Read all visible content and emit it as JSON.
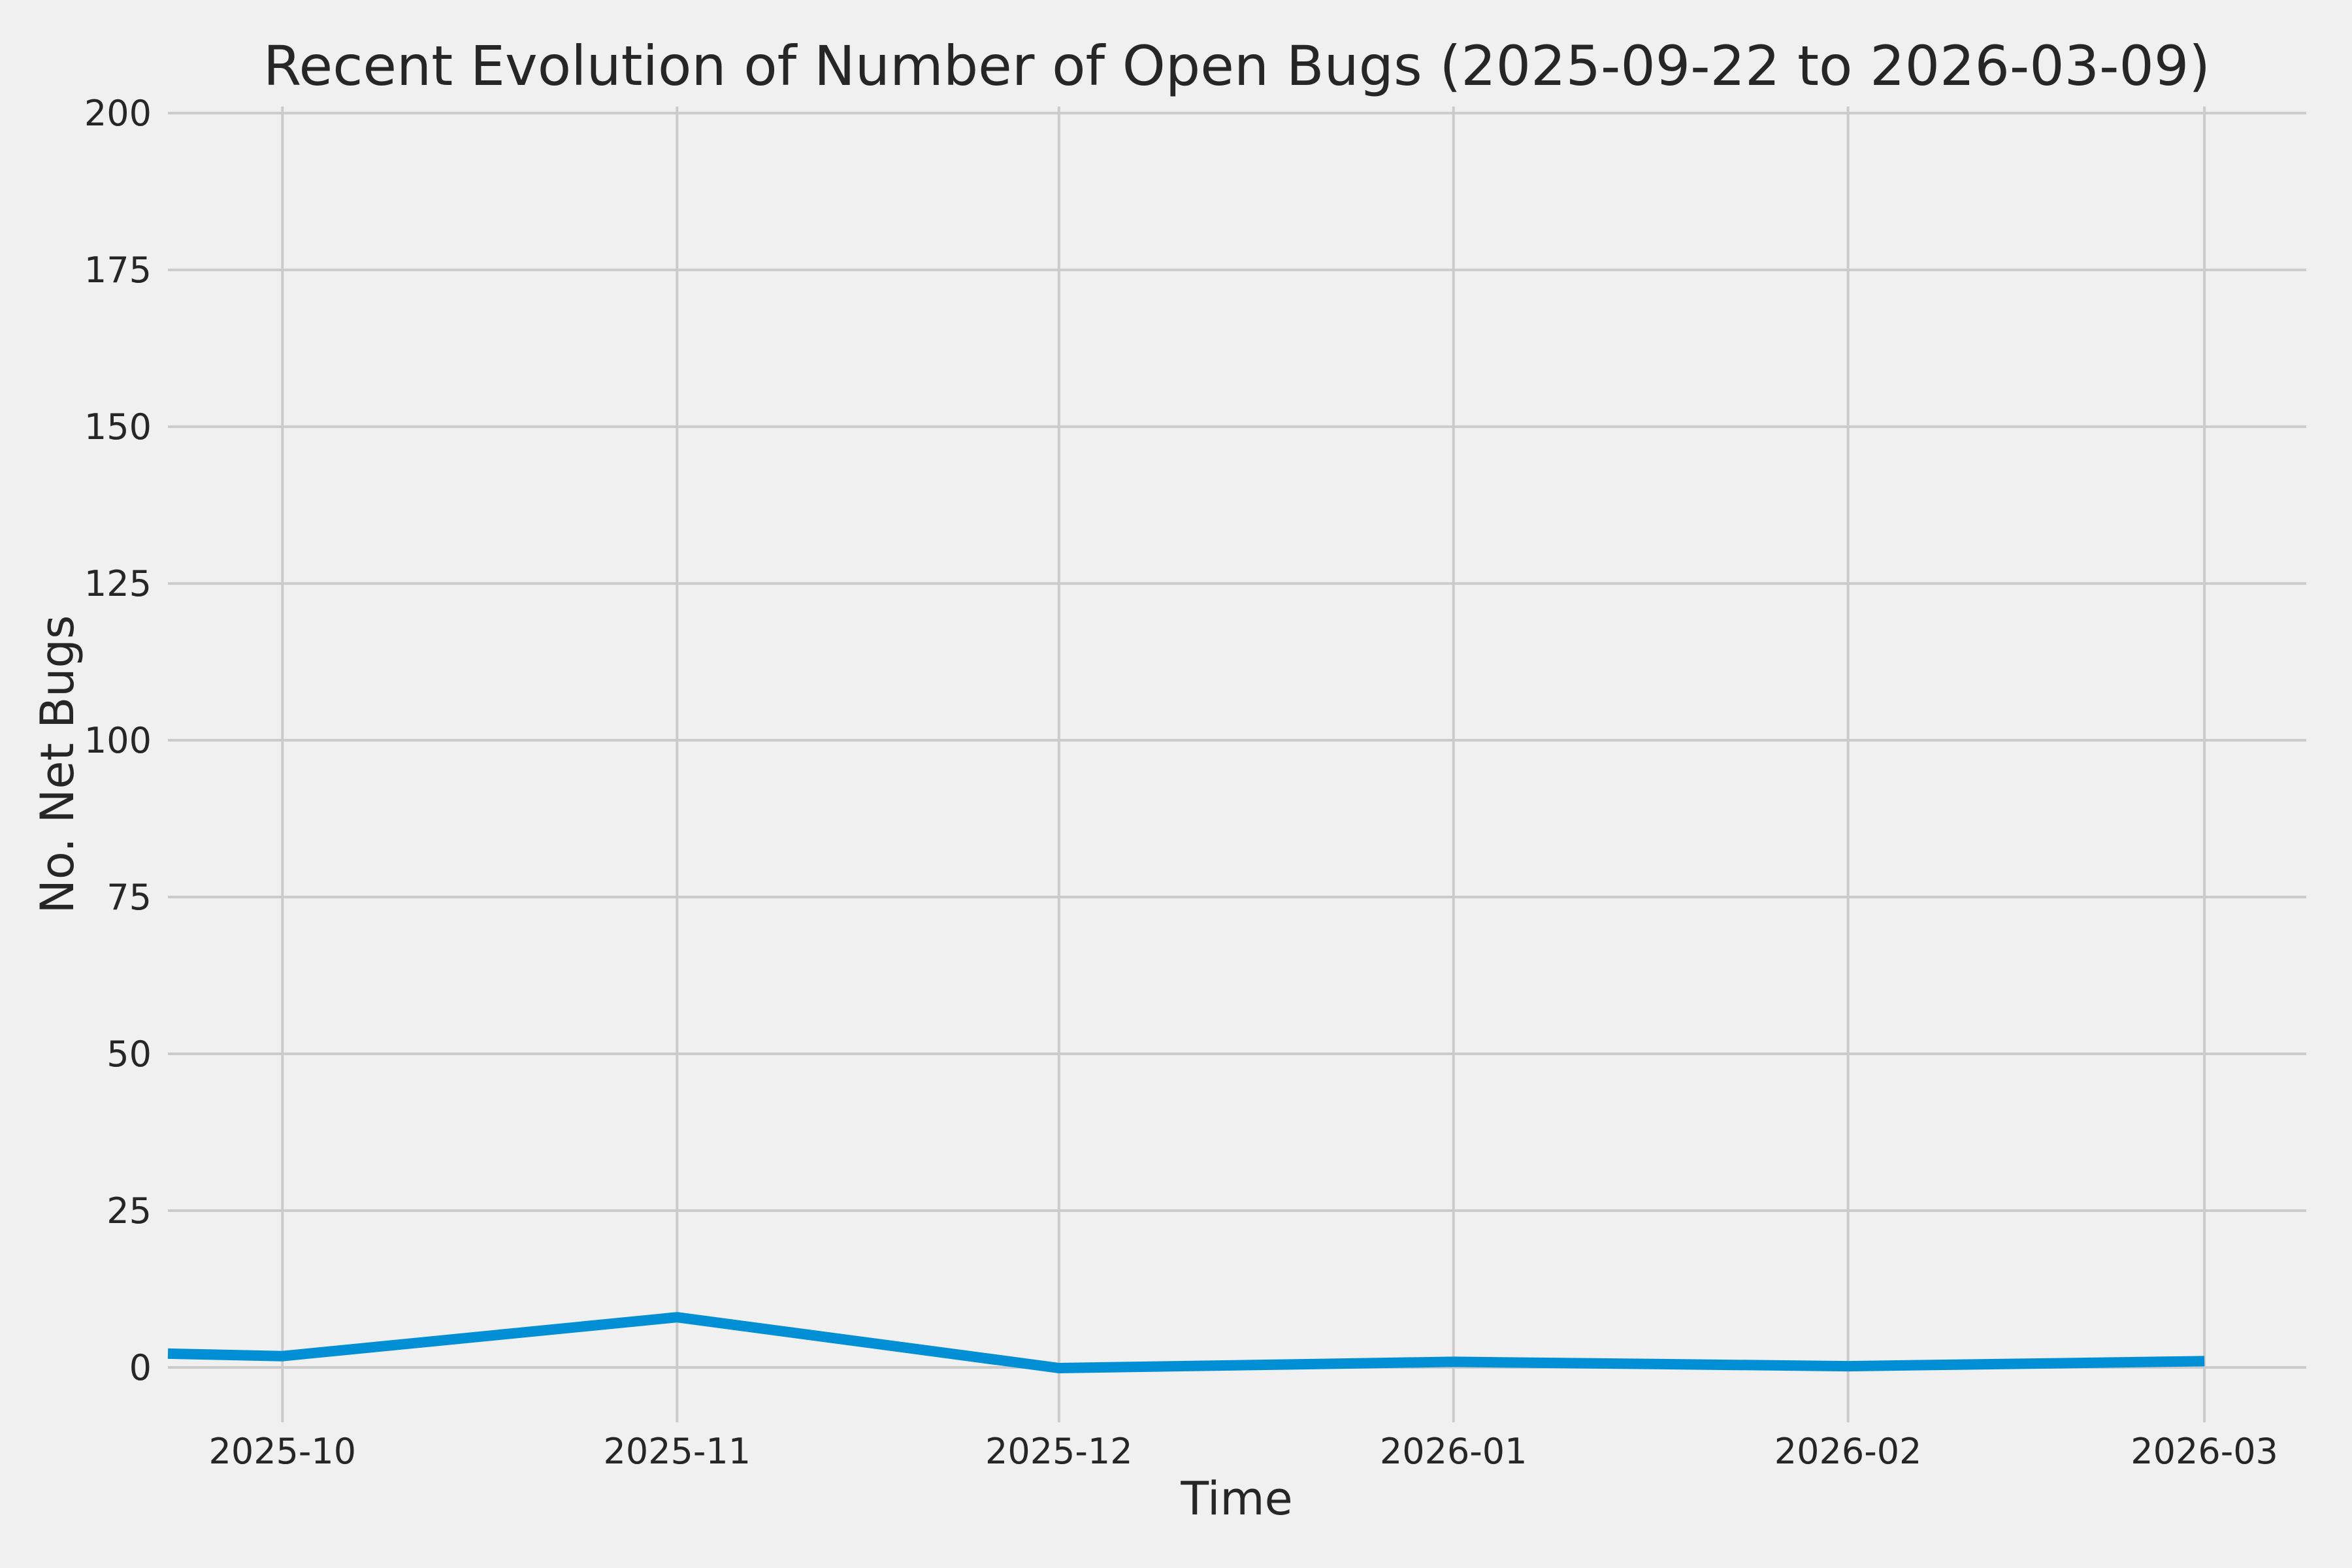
{
  "figure": {
    "title": "Recent Evolution of Number of Open Bugs (2025-09-22 to 2026-03-09)"
  },
  "chart_data": {
    "type": "line",
    "title": "Recent Evolution of Number of Open Bugs (2025-09-22 to 2026-03-09)",
    "xlabel": "Time",
    "ylabel": "No. Net Bugs",
    "grid": true,
    "legend": false,
    "markers": false,
    "colors": {
      "background": "#f0f0f0",
      "grid": "#cbcbcb",
      "text": "#262626",
      "line": "#008fd5"
    },
    "x_axis": {
      "kind": "time",
      "range": [
        "2025-09-22",
        "2026-03-09"
      ],
      "range_days": [
        0,
        168
      ],
      "ticks": [
        {
          "label": "2025-10",
          "day": 9
        },
        {
          "label": "2025-11",
          "day": 40
        },
        {
          "label": "2025-12",
          "day": 70
        },
        {
          "label": "2026-01",
          "day": 101
        },
        {
          "label": "2026-02",
          "day": 132
        },
        {
          "label": "2026-03",
          "day": 160
        }
      ]
    },
    "y_axis": {
      "ticks": [
        0,
        25,
        50,
        75,
        100,
        125,
        150,
        175,
        200
      ],
      "lim": [
        -8.75,
        201.05
      ]
    },
    "series": [
      {
        "points": [
          {
            "date": "2025-09-22",
            "day": 0,
            "value": 2.2
          },
          {
            "date": "2025-10-01",
            "day": 9,
            "value": 1.8
          },
          {
            "date": "2025-11-01",
            "day": 40,
            "value": 8
          },
          {
            "date": "2025-12-01",
            "day": 70,
            "value": -0.1
          },
          {
            "date": "2026-01-01",
            "day": 101,
            "value": 0.9
          },
          {
            "date": "2026-02-01",
            "day": 132,
            "value": 0.2
          },
          {
            "date": "2026-03-02",
            "day": 160,
            "value": 1
          }
        ]
      }
    ]
  }
}
